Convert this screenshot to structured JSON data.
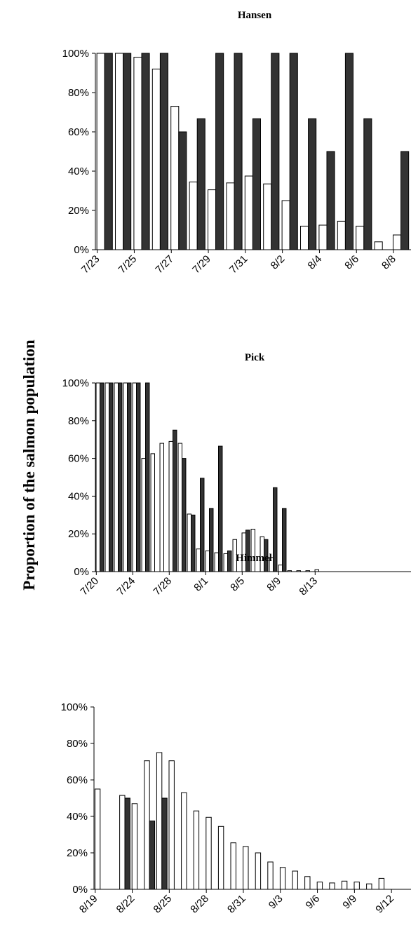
{
  "figure": {
    "ylabel": "Proportion of the salmon population"
  },
  "chart_data": [
    {
      "type": "bar",
      "title": "Hansen",
      "xlabel": "",
      "ylabel": "",
      "ylim": [
        0,
        1
      ],
      "yticks": [
        "0%",
        "20%",
        "40%",
        "60%",
        "80%",
        "100%"
      ],
      "x_tick_labels": [
        "7/23",
        "7/25",
        "7/27",
        "7/29",
        "7/31",
        "8/2",
        "8/4",
        "8/6",
        "8/8"
      ],
      "series": [
        {
          "fill": "#ffffff",
          "values": [
            1.0,
            1.0,
            0.98,
            0.92,
            0.73,
            0.345,
            0.305,
            0.34,
            0.375,
            0.335,
            0.25,
            0.12,
            0.125,
            0.145,
            0.12,
            0.04,
            0.075
          ]
        },
        {
          "fill": "#333333",
          "values": [
            1.0,
            1.0,
            1.0,
            1.0,
            0.6,
            0.667,
            1.0,
            1.0,
            0.667,
            1.0,
            1.0,
            0.667,
            0.5,
            1.0,
            0.667,
            null,
            0.5
          ]
        }
      ]
    },
    {
      "type": "bar",
      "title": "Pick",
      "xlabel": "",
      "ylabel": "",
      "ylim": [
        0,
        1
      ],
      "yticks": [
        "0%",
        "20%",
        "40%",
        "60%",
        "80%",
        "100%"
      ],
      "x_tick_labels": [
        "7/20",
        "7/24",
        "7/28",
        "8/1",
        "8/5",
        "8/9",
        "8/13"
      ],
      "series": [
        {
          "fill": "#ffffff",
          "values": [
            1.0,
            1.0,
            1.0,
            1.0,
            1.0,
            0.6,
            0.625,
            0.68,
            0.69,
            0.68,
            0.305,
            0.12,
            0.11,
            0.1,
            0.095,
            0.17,
            0.205,
            0.225,
            0.185,
            0.075,
            0.035,
            0.005,
            0.005,
            0.005,
            0.01,
            0,
            0,
            0,
            0,
            0
          ]
        },
        {
          "fill": "#333333",
          "values": [
            1.0,
            1.0,
            1.0,
            1.0,
            1.0,
            1.0,
            null,
            null,
            0.75,
            0.6,
            0.3,
            0.495,
            0.335,
            0.665,
            0.11,
            null,
            0.22,
            null,
            0.17,
            0.445,
            0.335,
            null,
            null,
            null,
            null,
            null,
            null,
            null,
            null,
            null
          ]
        }
      ]
    },
    {
      "type": "bar",
      "title": "Himmel",
      "xlabel": "",
      "ylabel": "",
      "ylim": [
        0,
        1
      ],
      "yticks": [
        "0%",
        "20%",
        "40%",
        "60%",
        "80%",
        "100%"
      ],
      "x_tick_labels": [
        "8/19",
        "8/22",
        "8/25",
        "8/28",
        "8/31",
        "9/3",
        "9/6",
        "9/9",
        "9/12"
      ],
      "series": [
        {
          "fill": "#ffffff",
          "values": [
            0.55,
            null,
            0.515,
            0.47,
            0.705,
            0.75,
            0.705,
            0.53,
            0.43,
            0.395,
            0.345,
            0.255,
            0.235,
            0.2,
            0.15,
            0.12,
            0.1,
            0.07,
            0.04,
            0.035,
            0.045,
            0.04,
            0.03,
            0.06,
            null,
            null
          ]
        },
        {
          "fill": "#333333",
          "values": [
            null,
            null,
            0.5,
            null,
            0.375,
            0.5,
            null,
            null,
            null,
            null,
            null,
            null,
            null,
            null,
            null,
            null,
            null,
            null,
            null,
            null,
            null,
            null,
            null,
            null,
            null,
            null
          ]
        }
      ]
    }
  ]
}
